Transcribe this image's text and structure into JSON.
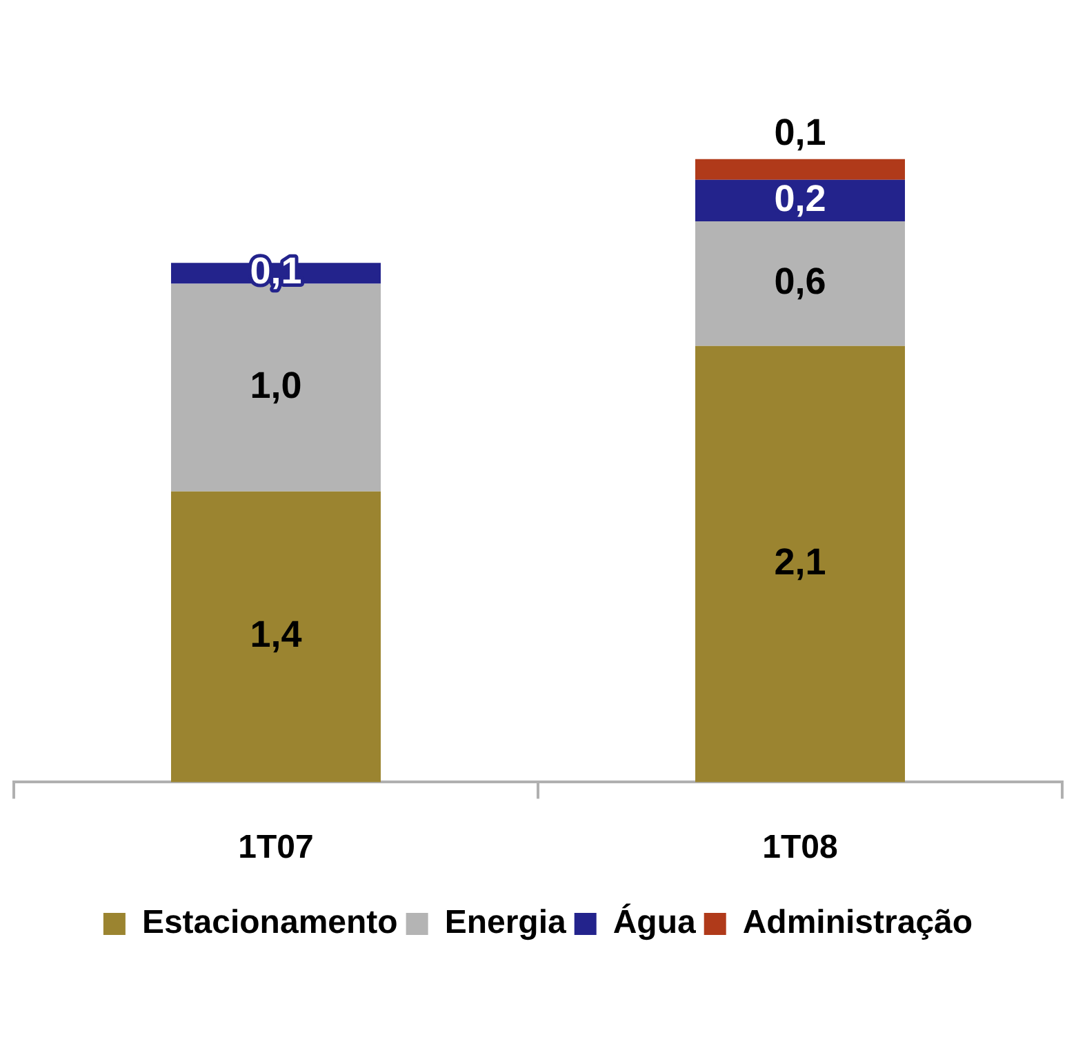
{
  "chart_data": {
    "type": "bar",
    "stacked": true,
    "categories": [
      "1T07",
      "1T08"
    ],
    "series": [
      {
        "name": "Estacionamento",
        "color": "#9b8430",
        "values": [
          1.4,
          2.1
        ],
        "value_labels": [
          "1,4",
          "2,1"
        ]
      },
      {
        "name": "Energia",
        "color": "#b4b4b4",
        "values": [
          1.0,
          0.6
        ],
        "value_labels": [
          "1,0",
          "0,6"
        ]
      },
      {
        "name": "Água",
        "color": "#23238c",
        "values": [
          0.1,
          0.2
        ],
        "value_labels": [
          "0,1",
          "0,2"
        ]
      },
      {
        "name": "Administração",
        "color": "#b03a1a",
        "values": [
          null,
          0.1
        ],
        "value_labels": [
          null,
          "0,1"
        ]
      }
    ],
    "legend": "bottom"
  }
}
